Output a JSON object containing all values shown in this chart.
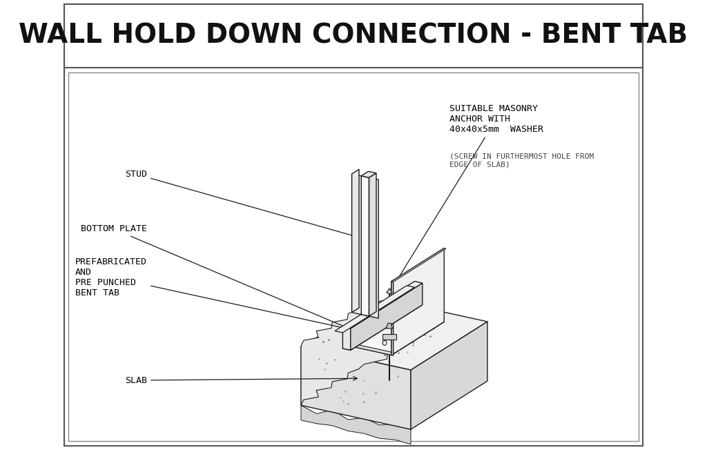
{
  "title": "WALL HOLD DOWN CONNECTION - BENT TAB",
  "title_fontsize": 28,
  "bg_color": "#ffffff",
  "border_color": "#333333",
  "line_color": "#1a1a1a",
  "labels": {
    "stud": "STUD",
    "bottom_plate": "BOTTOM PLATE",
    "prefab": "PREFABRICATED\nAND\nPRE PUNCHED\nBENT TAB",
    "slab": "SLAB",
    "anchor": "SUITABLE MASONRY\nANCHOR WITH\n40x40x5mm  WASHER",
    "anchor_note": "(SCREW IN FURTHERMOST HOLE FROM\nEDGE OF SLAB)"
  },
  "label_fontsize": 9.5,
  "note_fontsize": 8.0
}
